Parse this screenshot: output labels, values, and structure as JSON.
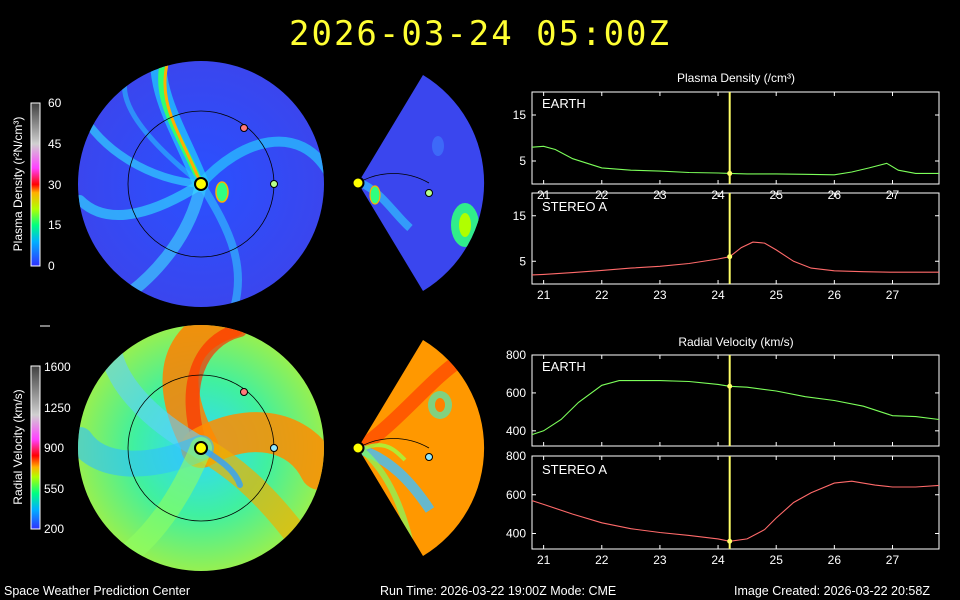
{
  "header": {
    "title": "2026-03-24  05:00Z"
  },
  "footer": {
    "left": "Space Weather Prediction Center",
    "middle": "Run Time: 2026-03-22 19:00Z  Mode: CME",
    "right": "Image Created: 2026-03-22 20:58Z"
  },
  "colorbars": [
    {
      "label": "Plasma Density (r²N/cm³)",
      "ticks": [
        "60",
        "45",
        "30",
        "15",
        "0"
      ],
      "range": [
        0,
        60
      ]
    },
    {
      "label": "Radial Velocity (km/s)",
      "ticks": [
        "1600",
        "1250",
        "900",
        "550",
        "200"
      ],
      "range": [
        200,
        1600
      ]
    }
  ],
  "colors": {
    "earth_line": "#7cff5a",
    "stereo_line": "#ff6a6a",
    "time_marker": "#ffff66",
    "sun": "#ffff00",
    "earth_marker": "#b8ff8a",
    "stereo_marker": "#ff7a7a",
    "velocity_earth_marker": "#8fe8ff"
  },
  "chart_data": [
    {
      "type": "line",
      "title": "Plasma Density (/cm³)",
      "panel": "EARTH",
      "xlim": [
        20.8,
        27.8
      ],
      "ylim": [
        0,
        20
      ],
      "yticks": [
        "15",
        "5"
      ],
      "xticks": [
        "21",
        "22",
        "23",
        "24",
        "25",
        "26",
        "27"
      ],
      "marker_x": 24.2,
      "x": [
        20.8,
        21.0,
        21.2,
        21.5,
        22.0,
        22.5,
        23.0,
        23.5,
        24.0,
        24.2,
        24.5,
        25.0,
        25.5,
        26.0,
        26.3,
        26.6,
        26.9,
        27.1,
        27.4,
        27.8
      ],
      "y": [
        8.0,
        8.2,
        7.5,
        5.5,
        3.5,
        3.0,
        2.8,
        2.5,
        2.4,
        2.3,
        2.2,
        2.2,
        2.1,
        2.0,
        2.6,
        3.5,
        4.5,
        3.0,
        2.3,
        2.3
      ]
    },
    {
      "type": "line",
      "panel": "STEREO A",
      "xlim": [
        20.8,
        27.8
      ],
      "ylim": [
        0,
        20
      ],
      "yticks": [
        "15",
        "5"
      ],
      "xticks": [
        "21",
        "22",
        "23",
        "24",
        "25",
        "26",
        "27"
      ],
      "marker_x": 24.2,
      "x": [
        20.8,
        21.0,
        21.5,
        22.0,
        22.5,
        23.0,
        23.5,
        24.0,
        24.2,
        24.4,
        24.6,
        24.8,
        25.0,
        25.3,
        25.6,
        26.0,
        26.5,
        27.0,
        27.8
      ],
      "y": [
        2.0,
        2.1,
        2.5,
        3.0,
        3.5,
        3.9,
        4.5,
        5.5,
        6.0,
        8.0,
        9.2,
        9.0,
        7.5,
        5.0,
        3.5,
        2.9,
        2.7,
        2.6,
        2.6
      ]
    },
    {
      "type": "line",
      "title": "Radial Velocity (km/s)",
      "panel": "EARTH",
      "xlim": [
        20.8,
        27.8
      ],
      "ylim": [
        320,
        800
      ],
      "yticks": [
        "800",
        "600",
        "400"
      ],
      "xticks": [
        "21",
        "22",
        "23",
        "24",
        "25",
        "26",
        "27"
      ],
      "marker_x": 24.2,
      "x": [
        20.8,
        21.0,
        21.3,
        21.6,
        22.0,
        22.3,
        22.7,
        23.0,
        23.5,
        24.0,
        24.2,
        24.5,
        25.0,
        25.5,
        26.0,
        26.5,
        27.0,
        27.4,
        27.8
      ],
      "y": [
        380,
        400,
        460,
        550,
        640,
        665,
        665,
        665,
        660,
        645,
        635,
        630,
        610,
        580,
        560,
        530,
        480,
        475,
        460
      ]
    },
    {
      "type": "line",
      "panel": "STEREO A",
      "xlim": [
        20.8,
        27.8
      ],
      "ylim": [
        320,
        800
      ],
      "yticks": [
        "800",
        "600",
        "400"
      ],
      "xticks": [
        "21",
        "22",
        "23",
        "24",
        "25",
        "26",
        "27"
      ],
      "marker_x": 24.2,
      "x": [
        20.8,
        21.0,
        21.5,
        22.0,
        22.5,
        23.0,
        23.5,
        24.0,
        24.2,
        24.5,
        24.8,
        25.0,
        25.3,
        25.6,
        26.0,
        26.3,
        26.7,
        27.0,
        27.4,
        27.8
      ],
      "y": [
        570,
        550,
        500,
        455,
        425,
        405,
        390,
        372,
        360,
        372,
        420,
        480,
        560,
        610,
        660,
        670,
        650,
        640,
        640,
        648
      ]
    }
  ]
}
